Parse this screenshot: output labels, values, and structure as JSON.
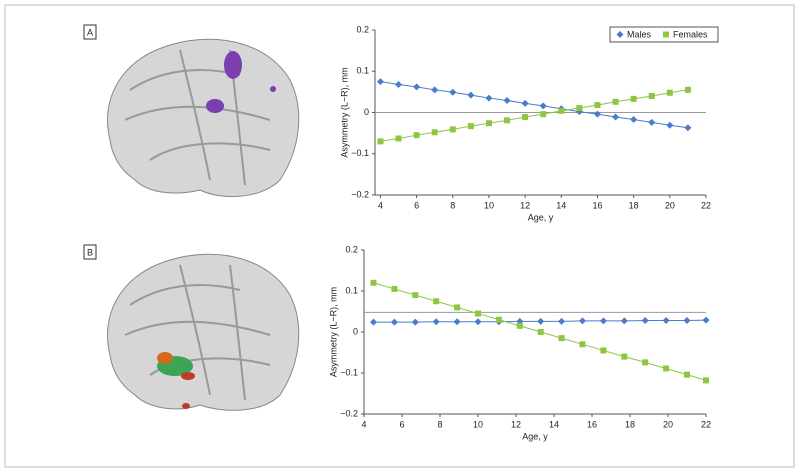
{
  "chart_data": [
    {
      "type": "line",
      "panel_label": "A",
      "x_label": "Age, y",
      "y_label": "Asymmetry (L−R), mm",
      "x": [
        4,
        5,
        6,
        7,
        8,
        9,
        10,
        11,
        12,
        13,
        14,
        15,
        16,
        17,
        18,
        19,
        20,
        21
      ],
      "series": [
        {
          "name": "Males",
          "color": "#4a7cc9",
          "marker": "diamond",
          "values": [
            0.075,
            0.068,
            0.062,
            0.055,
            0.049,
            0.042,
            0.035,
            0.029,
            0.022,
            0.016,
            0.009,
            0.002,
            -0.004,
            -0.011,
            -0.017,
            -0.024,
            -0.031,
            -0.037
          ]
        },
        {
          "name": "Females",
          "color": "#8dc63f",
          "marker": "square",
          "values": [
            -0.07,
            -0.063,
            -0.055,
            -0.048,
            -0.041,
            -0.033,
            -0.026,
            -0.019,
            -0.011,
            -0.004,
            0.004,
            0.011,
            0.018,
            0.026,
            0.033,
            0.04,
            0.048,
            0.055
          ]
        }
      ],
      "xlim": [
        3.7,
        22
      ],
      "xticks": [
        4,
        6,
        8,
        10,
        12,
        14,
        16,
        18,
        20,
        22
      ],
      "ylim": [
        -0.2,
        0.2
      ],
      "yticks": [
        {
          "value": -0.2,
          "label": "−0.2"
        },
        {
          "value": -0.1,
          "label": "−0.1"
        },
        0,
        0.1,
        0.2
      ],
      "hline": 0,
      "legend": "top-right"
    },
    {
      "type": "line",
      "panel_label": "B",
      "x_label": "Age, y",
      "y_label": "Asymmetry (L−R), mm",
      "x": [
        4.5,
        5.6,
        6.7,
        7.8,
        8.9,
        10.0,
        11.1,
        12.2,
        13.3,
        14.4,
        15.5,
        16.6,
        17.7,
        18.8,
        19.9,
        21.0,
        22.0
      ],
      "series": [
        {
          "name": "Males",
          "color": "#4a7cc9",
          "marker": "diamond",
          "values": [
            0.024,
            0.024,
            0.024,
            0.025,
            0.025,
            0.025,
            0.025,
            0.026,
            0.026,
            0.026,
            0.027,
            0.027,
            0.027,
            0.028,
            0.028,
            0.028,
            0.029
          ]
        },
        {
          "name": "Females",
          "color": "#8dc63f",
          "marker": "square",
          "values": [
            0.12,
            0.105,
            0.09,
            0.075,
            0.06,
            0.045,
            0.03,
            0.015,
            0.0,
            -0.015,
            -0.03,
            -0.045,
            -0.06,
            -0.074,
            -0.089,
            -0.104,
            -0.118
          ]
        }
      ],
      "xlim": [
        4,
        22
      ],
      "xticks": [
        4,
        6,
        8,
        10,
        12,
        14,
        16,
        18,
        20,
        22
      ],
      "ylim": [
        -0.2,
        0.2
      ],
      "yticks": [
        {
          "value": -0.2,
          "label": "−0.2"
        },
        {
          "value": -0.1,
          "label": "−0.1"
        },
        0,
        0.1,
        0.2
      ],
      "hline": 0.048
    }
  ]
}
